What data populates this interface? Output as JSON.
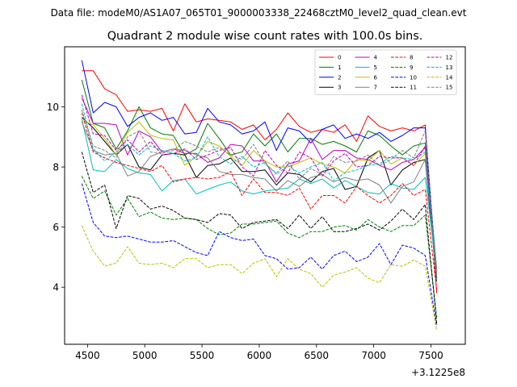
{
  "suptitle": "Data file: modeM0/AS1A07_065T01_9000003338_22468cztM0_level2_quad_clean.evt",
  "chart_data": {
    "type": "line",
    "title": "Quadrant 2 module wise count rates with 100.0s bins.",
    "xlabel": "",
    "ylabel": "",
    "x_offset_label": "+3.1225e8",
    "xlim": [
      4300,
      7800
    ],
    "ylim": [
      2.1,
      12.0
    ],
    "xticks": [
      4500,
      5000,
      5500,
      6000,
      6500,
      7000,
      7500
    ],
    "yticks": [
      4,
      6,
      8,
      10
    ],
    "grid": false,
    "legend_position": "top-right",
    "legend_columns": 4,
    "x": [
      4450,
      4550,
      4650,
      4750,
      4850,
      4950,
      5050,
      5150,
      5250,
      5350,
      5450,
      5550,
      5650,
      5750,
      5850,
      5950,
      6050,
      6150,
      6250,
      6350,
      6450,
      6550,
      6650,
      6750,
      6850,
      6950,
      7050,
      7150,
      7250,
      7350,
      7450,
      7550
    ],
    "series": [
      {
        "name": "0",
        "color": "#ff0000",
        "dash": "solid",
        "values": [
          11.2,
          11.2,
          10.6,
          10.4,
          9.85,
          9.9,
          9.85,
          9.95,
          9.2,
          10.1,
          9.5,
          9.6,
          9.55,
          9.5,
          9.25,
          9.4,
          8.9,
          9.25,
          9.8,
          9.35,
          9.15,
          9.25,
          9.15,
          9.4,
          8.85,
          9.7,
          9.35,
          9.2,
          9.3,
          9.2,
          9.4,
          3.8
        ]
      },
      {
        "name": "1",
        "color": "#008000",
        "dash": "solid",
        "values": [
          10.9,
          9.45,
          9.3,
          8.6,
          9.2,
          10.0,
          9.3,
          9.1,
          9.05,
          8.4,
          8.6,
          9.45,
          8.95,
          8.4,
          8.5,
          9.1,
          8.7,
          9.1,
          8.5,
          8.95,
          8.95,
          8.75,
          8.85,
          8.7,
          8.5,
          9.2,
          9.05,
          8.7,
          8.4,
          8.7,
          8.8,
          4.6
        ]
      },
      {
        "name": "2",
        "color": "#0000ff",
        "dash": "solid",
        "values": [
          11.55,
          9.8,
          10.15,
          10.0,
          9.35,
          9.65,
          9.8,
          9.55,
          9.65,
          9.1,
          9.15,
          9.95,
          9.5,
          9.4,
          9.1,
          9.2,
          9.5,
          8.55,
          9.3,
          9.2,
          8.8,
          9.25,
          9.4,
          8.95,
          9.1,
          8.95,
          9.15,
          8.85,
          9.05,
          9.3,
          9.3,
          4.3
        ]
      },
      {
        "name": "3",
        "color": "#000000",
        "dash": "solid",
        "values": [
          9.65,
          9.3,
          8.85,
          8.4,
          8.75,
          8.0,
          7.9,
          8.4,
          8.45,
          8.4,
          7.65,
          8.05,
          8.1,
          8.3,
          7.85,
          7.85,
          7.9,
          7.4,
          7.8,
          7.75,
          7.5,
          7.85,
          7.95,
          7.25,
          7.35,
          8.3,
          8.55,
          7.4,
          7.9,
          8.15,
          8.25,
          4.2
        ]
      },
      {
        "name": "4",
        "color": "#bf00bf",
        "dash": "solid",
        "values": [
          10.3,
          9.45,
          9.45,
          9.4,
          8.4,
          9.2,
          9.0,
          8.5,
          8.6,
          8.45,
          8.45,
          8.15,
          8.3,
          8.75,
          8.7,
          8.2,
          8.2,
          7.5,
          8.1,
          8.2,
          8.95,
          8.25,
          8.55,
          8.55,
          8.3,
          8.25,
          8.05,
          7.9,
          8.15,
          8.25,
          8.65,
          4.4
        ]
      },
      {
        "name": "5",
        "color": "#00bfbf",
        "dash": "solid",
        "values": [
          9.6,
          7.9,
          7.85,
          8.25,
          7.95,
          7.8,
          7.75,
          7.2,
          7.55,
          7.6,
          7.1,
          7.25,
          7.4,
          7.5,
          7.2,
          7.1,
          7.2,
          7.25,
          7.3,
          7.6,
          7.45,
          7.6,
          7.3,
          7.55,
          7.35,
          7.15,
          7.1,
          7.45,
          7.3,
          7.25,
          7.65,
          4.5
        ]
      },
      {
        "name": "6",
        "color": "#bfbf00",
        "dash": "solid",
        "values": [
          9.55,
          9.4,
          8.95,
          8.4,
          9.15,
          9.5,
          9.05,
          8.95,
          8.9,
          8.05,
          8.35,
          8.85,
          8.7,
          8.35,
          8.05,
          8.55,
          8.2,
          8.0,
          8.0,
          8.15,
          8.3,
          8.1,
          8.0,
          7.8,
          8.25,
          8.2,
          8.55,
          8.1,
          8.3,
          8.05,
          8.45,
          4.45
        ]
      },
      {
        "name": "7",
        "color": "#808080",
        "dash": "solid",
        "values": [
          9.5,
          8.55,
          8.4,
          8.45,
          7.7,
          7.85,
          8.35,
          8.5,
          8.6,
          8.55,
          8.4,
          8.3,
          7.85,
          7.75,
          7.75,
          7.65,
          7.6,
          7.2,
          7.55,
          7.35,
          7.65,
          7.75,
          7.5,
          7.65,
          7.55,
          7.6,
          7.4,
          6.8,
          7.35,
          7.5,
          8.25,
          4.6
        ]
      },
      {
        "name": "8",
        "color": "#ff0000",
        "dash": "dashed",
        "values": [
          9.8,
          8.5,
          8.3,
          8.15,
          8.05,
          7.95,
          7.85,
          8.05,
          7.5,
          7.6,
          7.65,
          7.6,
          7.65,
          7.85,
          7.05,
          7.6,
          7.15,
          7.15,
          7.05,
          7.3,
          6.6,
          7.05,
          7.05,
          6.8,
          7.35,
          7.05,
          6.8,
          7.05,
          7.45,
          7.05,
          7.25,
          3.9
        ]
      },
      {
        "name": "9",
        "color": "#008000",
        "dash": "dashed",
        "values": [
          7.7,
          6.95,
          7.2,
          6.4,
          6.95,
          6.35,
          6.5,
          6.3,
          6.25,
          6.3,
          6.25,
          5.95,
          5.75,
          5.8,
          6.1,
          6.1,
          6.15,
          6.2,
          5.8,
          5.65,
          5.85,
          5.85,
          6.0,
          6.05,
          5.9,
          6.25,
          6.0,
          5.85,
          6.05,
          6.05,
          6.4,
          3.0
        ]
      },
      {
        "name": "10",
        "color": "#0000ff",
        "dash": "dashed",
        "values": [
          7.45,
          6.15,
          5.7,
          5.65,
          5.7,
          5.6,
          5.5,
          5.5,
          5.55,
          5.35,
          5.15,
          5.05,
          5.85,
          5.65,
          5.55,
          5.6,
          5.05,
          4.95,
          4.6,
          4.65,
          5.0,
          4.6,
          5.05,
          5.2,
          4.85,
          5.0,
          5.45,
          4.75,
          5.4,
          5.3,
          5.05,
          2.7
        ]
      },
      {
        "name": "11",
        "color": "#000000",
        "dash": "dashed",
        "values": [
          8.5,
          7.15,
          7.4,
          5.95,
          7.05,
          6.95,
          6.6,
          6.7,
          6.55,
          6.3,
          6.25,
          6.15,
          6.45,
          6.4,
          5.95,
          6.15,
          6.2,
          6.25,
          5.95,
          6.4,
          5.95,
          6.35,
          5.85,
          5.85,
          5.95,
          6.1,
          5.9,
          6.2,
          6.6,
          6.25,
          6.75,
          2.8
        ]
      },
      {
        "name": "12",
        "color": "#bf00bf",
        "dash": "dashed",
        "values": [
          10.4,
          9.1,
          9.05,
          8.55,
          8.9,
          8.5,
          8.85,
          8.4,
          8.45,
          8.6,
          8.25,
          8.4,
          8.55,
          8.65,
          8.0,
          7.7,
          8.55,
          8.05,
          7.8,
          8.5,
          8.3,
          7.7,
          8.2,
          8.45,
          8.0,
          8.05,
          8.35,
          8.3,
          8.3,
          8.05,
          8.7,
          4.3
        ]
      },
      {
        "name": "13",
        "color": "#00bfbf",
        "dash": "dashed",
        "values": [
          10.1,
          8.6,
          8.2,
          8.5,
          8.75,
          8.4,
          8.7,
          8.55,
          8.45,
          8.2,
          8.3,
          9.0,
          8.35,
          8.1,
          8.35,
          8.0,
          8.15,
          7.75,
          8.05,
          7.8,
          8.0,
          8.15,
          7.55,
          7.8,
          7.9,
          8.05,
          8.1,
          8.35,
          8.3,
          8.25,
          8.5,
          4.2
        ]
      },
      {
        "name": "14",
        "color": "#bfbf00",
        "dash": "dashed",
        "values": [
          6.05,
          5.2,
          4.7,
          4.8,
          5.35,
          4.8,
          4.75,
          4.8,
          4.65,
          4.95,
          4.95,
          4.65,
          4.75,
          4.75,
          4.45,
          4.8,
          4.95,
          4.35,
          4.95,
          4.6,
          4.45,
          4.0,
          4.4,
          4.5,
          4.65,
          4.3,
          4.15,
          4.75,
          4.7,
          4.9,
          4.7,
          2.55
        ]
      },
      {
        "name": "15",
        "color": "#808080",
        "dash": "dashed",
        "values": [
          9.9,
          8.7,
          8.55,
          8.3,
          9.0,
          9.2,
          8.5,
          8.45,
          8.55,
          8.85,
          8.7,
          8.5,
          8.65,
          8.4,
          8.25,
          8.75,
          8.1,
          7.8,
          8.2,
          7.6,
          7.95,
          7.75,
          8.35,
          8.15,
          8.2,
          8.4,
          8.05,
          8.25,
          8.55,
          8.3,
          9.2,
          4.35
        ]
      }
    ]
  }
}
